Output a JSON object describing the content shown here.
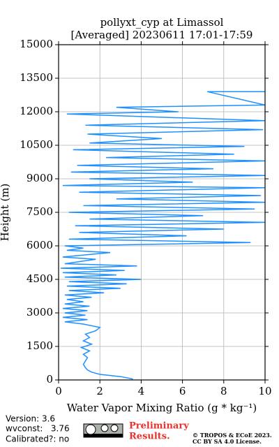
{
  "chart_data": {
    "type": "line",
    "title": "pollyxt_cyp at Limassol",
    "subtitle": "[Averaged] 20230611 17:01-17:59",
    "x_label": "Water Vapor Mixing Ratio (g * kg⁻¹)",
    "y_label": "Height (m)",
    "xlim": [
      0,
      10
    ],
    "xticks": [
      0,
      2,
      4,
      6,
      8,
      10
    ],
    "ylim": [
      0,
      15000
    ],
    "yticks": [
      0,
      1500,
      3000,
      4500,
      6000,
      7500,
      9000,
      10500,
      12000,
      13500,
      15000
    ],
    "grid": true,
    "series": [
      {
        "color": "#1e90ff",
        "x": [
          3.6,
          3.4,
          3.0,
          2.0,
          1.6,
          1.4,
          1.3,
          1.2,
          1.3,
          1.4,
          1.2,
          1.5,
          1.1,
          1.6,
          1.2,
          1.5,
          1.3,
          1.8,
          2.0,
          1.2,
          0.3,
          1.4,
          0.2,
          1.3,
          0.3,
          1.4,
          0.2,
          1.5,
          0.3,
          1.2,
          0.4,
          1.6,
          0.3,
          2.2,
          0.5,
          3.0,
          0.4,
          3.3,
          0.5,
          4.0,
          0.3,
          2.8,
          0.2,
          3.2,
          0.1,
          3.8,
          0.3,
          1.8,
          0.2,
          2.5,
          0.4,
          1.2,
          0.3,
          9.3,
          0.5,
          6.2,
          1.0,
          8.0,
          0.8,
          10.0,
          1.5,
          7.0,
          0.5,
          9.5,
          1.2,
          10.0,
          2.8,
          9.8,
          1.0,
          10.0,
          0.2,
          6.5,
          1.5,
          10.0,
          0.6,
          7.5,
          0.9,
          10.0,
          2.3,
          8.5,
          0.7,
          9.0,
          1.5,
          5.0,
          1.4,
          9.9,
          1.3,
          10.0,
          0.4,
          5.8,
          2.8,
          10.0,
          7.2,
          10.0
        ],
        "values": [
          40,
          80,
          150,
          250,
          350,
          450,
          550,
          700,
          850,
          1000,
          1150,
          1300,
          1450,
          1600,
          1750,
          1900,
          2050,
          2200,
          2350,
          2500,
          2600,
          2700,
          2800,
          2900,
          3000,
          3100,
          3200,
          3300,
          3400,
          3500,
          3600,
          3700,
          3800,
          3900,
          4000,
          4100,
          4200,
          4300,
          4400,
          4500,
          4600,
          4700,
          4800,
          4900,
          5000,
          5100,
          5200,
          5400,
          5500,
          5700,
          5800,
          5900,
          6000,
          6150,
          6300,
          6450,
          6600,
          6750,
          6900,
          7050,
          7200,
          7350,
          7500,
          7650,
          7800,
          7950,
          8100,
          8250,
          8400,
          8600,
          8700,
          8850,
          9000,
          9150,
          9300,
          9450,
          9600,
          9800,
          9950,
          10100,
          10300,
          10450,
          10600,
          10800,
          11000,
          11200,
          11400,
          11600,
          11900,
          12000,
          12200,
          12300,
          12900,
          12900
        ]
      }
    ]
  },
  "footer": {
    "version": "Version: 3.6",
    "wvconst": "wvconst:   3.76",
    "calibrated": "Calibrated?: no",
    "preliminary_1": "Preliminary",
    "preliminary_2": "Results.",
    "license_1": "© TROPOS & ECoE 2023.",
    "license_2": "CC BY SA 4.0 License."
  }
}
